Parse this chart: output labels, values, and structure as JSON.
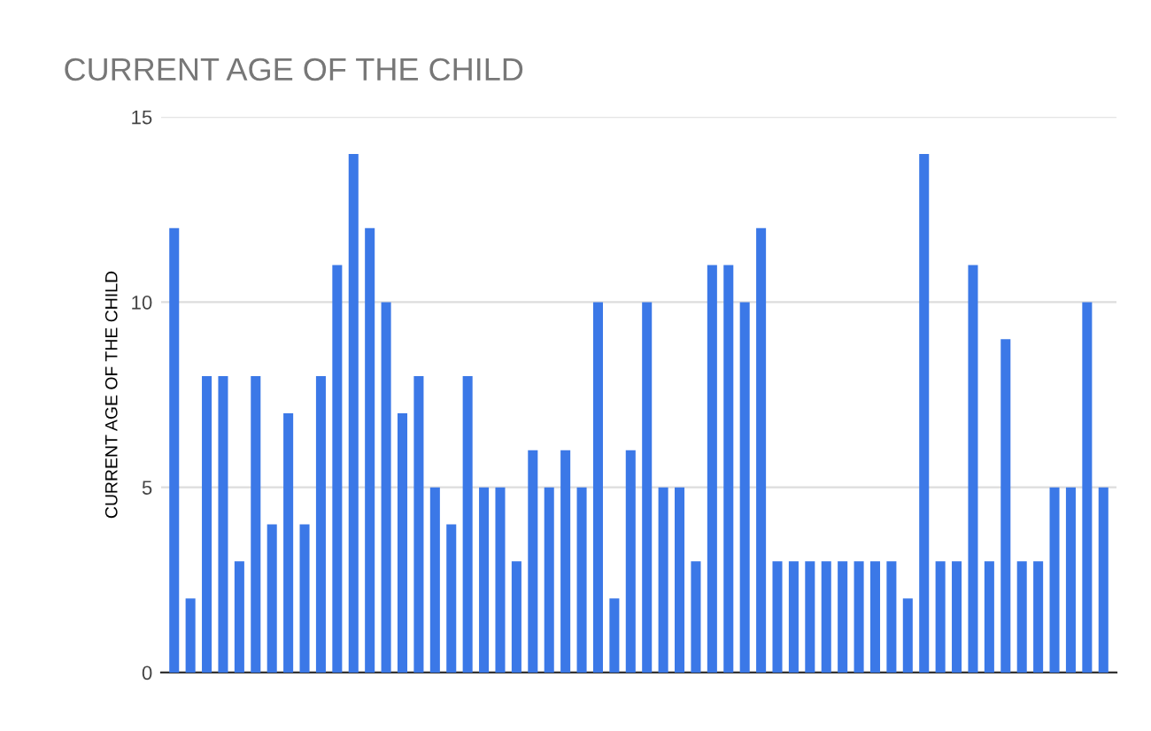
{
  "chart_data": {
    "type": "bar",
    "title": "CURRENT AGE OF THE CHILD",
    "ylabel": "CURRENT AGE OF THE CHILD",
    "categories": [
      null,
      null,
      null,
      null,
      null,
      null,
      null,
      null,
      null,
      null,
      null,
      null,
      null,
      null,
      null,
      null,
      null,
      null,
      null,
      null,
      null,
      null,
      null,
      null,
      null,
      null,
      null,
      null,
      null,
      null,
      null,
      null,
      null,
      null,
      null,
      null,
      null,
      null,
      null,
      null,
      null,
      null,
      null,
      null,
      null,
      null,
      null,
      null,
      null,
      null,
      null,
      null,
      null,
      null,
      null,
      null,
      null,
      null
    ],
    "values": [
      12,
      2,
      8,
      8,
      3,
      8,
      4,
      7,
      4,
      8,
      11,
      14,
      12,
      10,
      7,
      8,
      5,
      4,
      8,
      5,
      5,
      3,
      6,
      5,
      6,
      5,
      10,
      2,
      6,
      10,
      5,
      5,
      3,
      11,
      11,
      10,
      12,
      3,
      3,
      3,
      3,
      3,
      3,
      3,
      3,
      2,
      14,
      3,
      3,
      11,
      3,
      9,
      3,
      3,
      5,
      5,
      10,
      5
    ],
    "color": "#3b78e7",
    "ylim": [
      0,
      15
    ],
    "yticks": [
      0,
      5,
      10,
      15
    ],
    "grid": "y"
  }
}
